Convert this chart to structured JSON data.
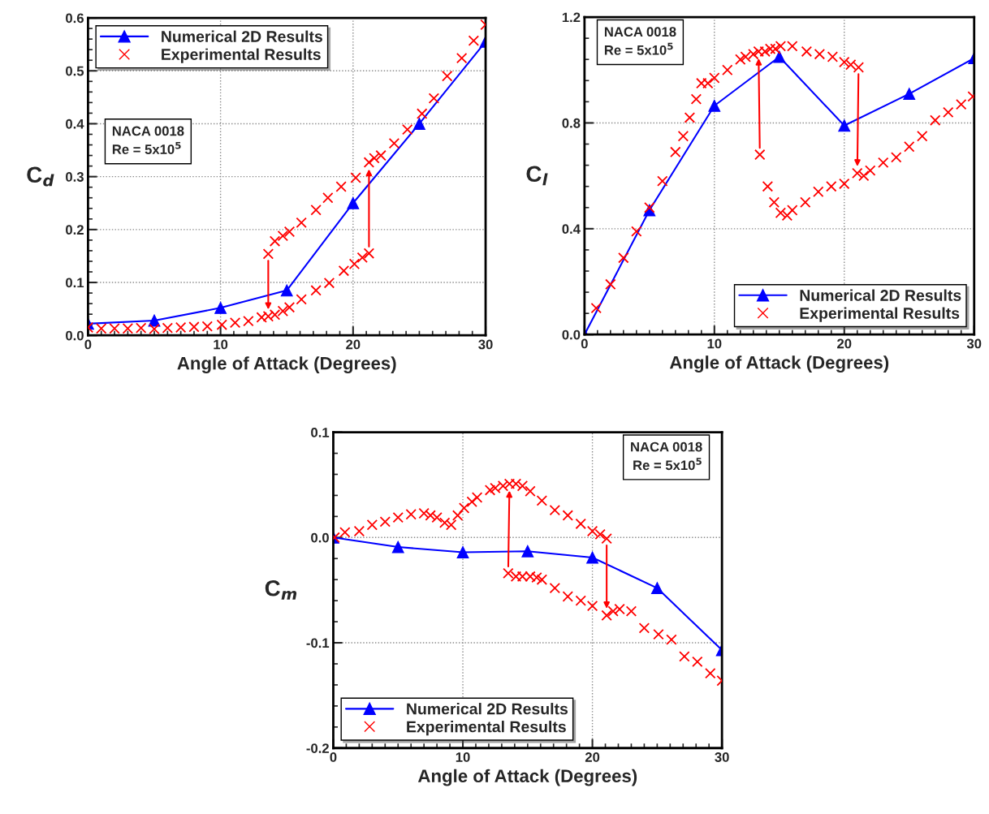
{
  "chart_data": [
    {
      "type": "line",
      "xlabel": "Angle of Attack (Degrees)",
      "ylabel": "C$_{d}$",
      "xlim": [
        0,
        30
      ],
      "ylim": [
        0,
        0.6
      ],
      "xticks": [
        0,
        10,
        20,
        30
      ],
      "yticks": [
        {
          "value": 0,
          "label": "0.0"
        },
        0.1,
        0.2,
        0.3,
        0.4,
        0.5,
        0.6
      ],
      "grid": true,
      "legend": "top left",
      "annotations": [
        "NACA 0018\nRe = 5x10$^{5}$"
      ],
      "series": [
        {
          "name": "Numerical 2D Results",
          "marker": "triangle",
          "color": "#0000ff",
          "x": [
            0,
            5,
            10,
            15,
            20,
            25,
            30
          ],
          "values": [
            0.022,
            0.028,
            0.052,
            0.085,
            0.25,
            0.4,
            0.555
          ]
        },
        {
          "name": "Experimental Results",
          "type": "scatter",
          "marker": "cross",
          "color": "#ff0000",
          "x": [
            0,
            1,
            2,
            3,
            4,
            5,
            6,
            7,
            8,
            9,
            10.1,
            11.1,
            12.1,
            13.1,
            13.6,
            14.1,
            14.7,
            15.2,
            16.1,
            17.2,
            18.2,
            19.3,
            20.1,
            20.7,
            21.2
          ],
          "values": [
            0.015,
            0.013,
            0.013,
            0.013,
            0.014,
            0.012,
            0.014,
            0.015,
            0.016,
            0.017,
            0.02,
            0.024,
            0.027,
            0.034,
            0.036,
            0.039,
            0.046,
            0.053,
            0.068,
            0.085,
            0.099,
            0.122,
            0.135,
            0.147,
            0.155
          ]
        },
        {
          "type": "scatter",
          "marker": "cross",
          "color": "#ff0000",
          "x": [
            13.6,
            14.1,
            14.7,
            15.2,
            16.1,
            17.2,
            18.1,
            19.1,
            20.2,
            21.2,
            21.6,
            22.1,
            23.1,
            24.1,
            25.2,
            26.1,
            27.1,
            28.2,
            29.1,
            30
          ],
          "values": [
            0.154,
            0.178,
            0.188,
            0.196,
            0.213,
            0.237,
            0.26,
            0.281,
            0.298,
            0.327,
            0.335,
            0.34,
            0.363,
            0.389,
            0.419,
            0.448,
            0.49,
            0.524,
            0.557,
            0.587
          ]
        }
      ]
    },
    {
      "type": "line",
      "xlabel": "Angle of Attack (Degrees)",
      "ylabel": "C$_{l}$",
      "xlim": [
        0,
        30
      ],
      "ylim": [
        0,
        1.2
      ],
      "xticks": [
        0,
        10,
        20,
        30
      ],
      "yticks": [
        {
          "value": 0,
          "label": "0.0"
        },
        0.4,
        0.8,
        1.2
      ],
      "grid": true,
      "legend": "bottom right",
      "annotations": [
        "NACA 0018\nRe = 5x10$^{5}$"
      ],
      "series": [
        {
          "name": "Numerical 2D Results",
          "marker": "triangle",
          "color": "#0000ff",
          "x": [
            0,
            5,
            10,
            15,
            20,
            25,
            30
          ],
          "values": [
            0,
            0.47,
            0.865,
            1.05,
            0.79,
            0.91,
            1.045
          ]
        },
        {
          "name": "Experimental Results",
          "type": "scatter",
          "marker": "cross",
          "color": "#ff0000",
          "x": [
            0.9,
            2,
            3,
            4,
            5,
            6,
            7,
            7.6,
            8.1,
            8.6,
            9,
            9.5,
            10,
            11,
            12,
            12.4,
            13,
            13.4,
            13.9,
            14.3,
            14.7,
            15.1,
            16,
            17.1,
            18.1,
            19.1,
            20,
            20.5,
            21.1
          ],
          "values": [
            0.1,
            0.19,
            0.29,
            0.39,
            0.48,
            0.58,
            0.69,
            0.75,
            0.82,
            0.89,
            0.95,
            0.95,
            0.97,
            1.0,
            1.04,
            1.05,
            1.06,
            1.07,
            1.07,
            1.08,
            1.08,
            1.09,
            1.09,
            1.07,
            1.06,
            1.05,
            1.03,
            1.02,
            1.01
          ]
        },
        {
          "type": "scatter",
          "marker": "cross",
          "color": "#ff0000",
          "x": [
            13.5,
            14.1,
            14.6,
            15.1,
            15.6,
            16,
            17,
            18,
            19,
            20,
            21,
            21.5,
            22,
            23,
            24,
            25,
            26,
            27,
            28,
            29,
            29.9
          ],
          "values": [
            0.68,
            0.56,
            0.5,
            0.46,
            0.45,
            0.47,
            0.5,
            0.54,
            0.56,
            0.57,
            0.61,
            0.6,
            0.62,
            0.65,
            0.67,
            0.71,
            0.75,
            0.81,
            0.84,
            0.87,
            0.9
          ]
        }
      ]
    },
    {
      "type": "line",
      "xlabel": "Angle of Attack (Degrees)",
      "ylabel": "C$_{m}$",
      "xlim": [
        0,
        30
      ],
      "ylim": [
        -0.2,
        0.1
      ],
      "xticks": [
        0,
        10,
        20,
        30
      ],
      "yticks": [
        {
          "value": -0.2,
          "label": "-0.2"
        },
        {
          "value": -0.1,
          "label": "-0.1"
        },
        {
          "value": 0,
          "label": "0.0"
        },
        0.1
      ],
      "grid": true,
      "legend": "bottom left",
      "annotations": [
        "NACA 0018\nRe = 5x10$^{5}$"
      ],
      "series": [
        {
          "name": "Numerical 2D Results",
          "marker": "triangle",
          "color": "#0000ff",
          "x": [
            0,
            5,
            10,
            15,
            20,
            25,
            30
          ],
          "values": [
            0,
            -0.009,
            -0.014,
            -0.013,
            -0.019,
            -0.048,
            -0.107
          ]
        },
        {
          "name": "Experimental Results",
          "type": "scatter",
          "marker": "cross",
          "color": "#ff0000",
          "x": [
            0.1,
            0.9,
            2,
            3,
            4,
            5,
            6,
            7,
            7.5,
            8,
            8.6,
            9.1,
            9.6,
            10.1,
            10.7,
            11.1,
            12.1,
            12.5,
            13.1,
            13.6,
            14.1,
            14.6,
            15.2,
            16.1,
            17.1,
            18.1,
            19.1,
            20,
            20.6,
            21.1
          ],
          "values": [
            0,
            0.005,
            0.006,
            0.012,
            0.015,
            0.019,
            0.022,
            0.023,
            0.021,
            0.019,
            0.014,
            0.012,
            0.021,
            0.028,
            0.034,
            0.038,
            0.045,
            0.047,
            0.049,
            0.051,
            0.051,
            0.049,
            0.044,
            0.035,
            0.026,
            0.021,
            0.013,
            0.006,
            0.003,
            -0.001
          ]
        },
        {
          "type": "scatter",
          "marker": "cross",
          "color": "#ff0000",
          "x": [
            13.5,
            14.1,
            14.6,
            15.2,
            15.7,
            16.1,
            17.1,
            18.1,
            19.1,
            20,
            21.1,
            21.6,
            22.1,
            23,
            24,
            25.1,
            26.1,
            27.1,
            28.1,
            29.1,
            30
          ],
          "values": [
            -0.034,
            -0.037,
            -0.037,
            -0.037,
            -0.038,
            -0.04,
            -0.048,
            -0.056,
            -0.06,
            -0.065,
            -0.074,
            -0.07,
            -0.068,
            -0.07,
            -0.086,
            -0.092,
            -0.097,
            -0.113,
            -0.118,
            -0.129,
            -0.136
          ]
        }
      ]
    }
  ]
}
